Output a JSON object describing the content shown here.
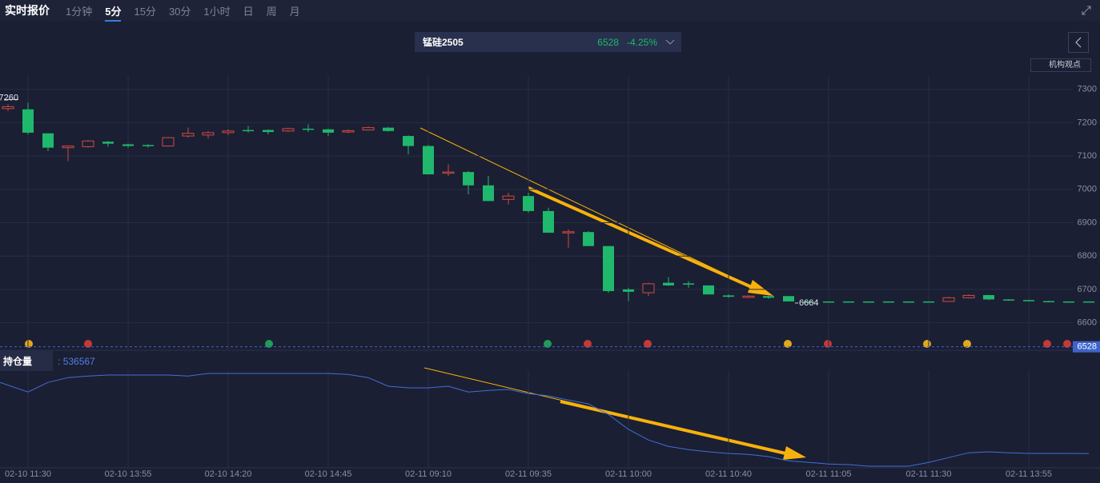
{
  "header": {
    "title": "实时报价",
    "tabs": [
      {
        "label": "1分钟"
      },
      {
        "label": "5分",
        "active": true
      },
      {
        "label": "15分"
      },
      {
        "label": "30分"
      },
      {
        "label": "1小时"
      },
      {
        "label": "日"
      },
      {
        "label": "周"
      },
      {
        "label": "月"
      }
    ]
  },
  "quote": {
    "symbol": "锰硅2505",
    "price": "6528",
    "change": "-4.25%"
  },
  "button": "机构观点",
  "chart_data": [
    {
      "type": "candlestick",
      "x": [
        null,
        "02-10 11:30",
        null,
        null,
        null,
        null,
        "02-10 13:55",
        null,
        null,
        null,
        null,
        "02-10 14:20",
        null,
        null,
        null,
        null,
        "02-10 14:45",
        null,
        null,
        null,
        null,
        "02-11 09:10",
        null,
        null,
        null,
        null,
        "02-11 09:35",
        null,
        null,
        null,
        null,
        "02-11 10:00",
        null,
        null,
        null,
        null,
        "02-11 10:40",
        null,
        null,
        null,
        null,
        "02-11 11:05",
        null,
        null,
        null,
        null,
        "02-11 11:30",
        null,
        null,
        null,
        null,
        "02-11 13:55",
        null,
        null,
        null
      ],
      "open": [
        7242,
        7240,
        7168,
        7125,
        7128,
        7143,
        7135,
        7133,
        7130,
        7160,
        7163,
        7170,
        7178,
        7178,
        7175,
        7182,
        7180,
        7172,
        7178,
        7185,
        7160,
        7130,
        7050,
        7052,
        7012,
        6970,
        6980,
        6935,
        6870,
        6872,
        6830,
        6700,
        6690,
        6720,
        6718,
        6712,
        6682,
        6676,
        6680,
        6680,
        6664,
        6664,
        6664,
        6664,
        6664,
        6664,
        6664,
        6664,
        6675,
        6683,
        6670,
        6668,
        6665,
        6664,
        6664
      ],
      "high": [
        7255,
        7260,
        7168,
        7132,
        7148,
        7145,
        7137,
        7135,
        7157,
        7185,
        7175,
        7180,
        7190,
        7180,
        7185,
        7195,
        7182,
        7180,
        7188,
        7187,
        7162,
        7133,
        7075,
        7055,
        7040,
        6990,
        6990,
        6945,
        6880,
        6875,
        6830,
        6705,
        6720,
        6737,
        6725,
        6712,
        6685,
        6682,
        6682,
        6680,
        6664,
        6664,
        6664,
        6664,
        6664,
        6664,
        6664,
        6678,
        6685,
        6684,
        6671,
        6669,
        6666,
        6664,
        6664
      ],
      "low": [
        7235,
        7165,
        7115,
        7085,
        7125,
        7128,
        7125,
        7125,
        7128,
        7155,
        7152,
        7163,
        7170,
        7165,
        7172,
        7172,
        7160,
        7168,
        7176,
        7173,
        7105,
        7045,
        7040,
        6985,
        6965,
        6955,
        6930,
        6870,
        6825,
        6830,
        6690,
        6665,
        6680,
        6710,
        6705,
        6685,
        6675,
        6674,
        6672,
        6664,
        6664,
        6664,
        6664,
        6664,
        6664,
        6664,
        6664,
        6664,
        6673,
        6668,
        6666,
        6665,
        6664,
        6664,
        6664
      ],
      "close": [
        7248,
        7170,
        7125,
        7130,
        7145,
        7137,
        7130,
        7130,
        7155,
        7168,
        7170,
        7175,
        7175,
        7172,
        7182,
        7180,
        7170,
        7176,
        7185,
        7175,
        7130,
        7045,
        7052,
        7012,
        6965,
        6980,
        6935,
        6870,
        6873,
        6830,
        6695,
        6693,
        6717,
        6712,
        6716,
        6685,
        6678,
        6680,
        6675,
        6664,
        6664,
        6664,
        6664,
        6664,
        6664,
        6664,
        6664,
        6675,
        6682,
        6670,
        6668,
        6665,
        6664,
        6664,
        6664
      ],
      "up_color": "#d24a43",
      "down_color": "#1fb86c",
      "last_price": 6528,
      "last_price_color": "#3e64c9",
      "ylim": [
        6520,
        7340
      ],
      "yticks": [
        6600,
        6700,
        6800,
        6900,
        7000,
        7100,
        7200,
        7300
      ],
      "grid": true
    },
    {
      "type": "line",
      "title": "持仓量",
      "color": "#3f6fd8",
      "values": [
        558800,
        555800,
        558800,
        560300,
        560800,
        561100,
        561100,
        561100,
        561100,
        560800,
        561600,
        561600,
        561600,
        561600,
        561600,
        561600,
        561600,
        561300,
        560300,
        557600,
        557100,
        557100,
        557600,
        555800,
        556300,
        556600,
        555300,
        554600,
        553300,
        552100,
        548800,
        544100,
        540800,
        538800,
        537800,
        537100,
        536600,
        536300,
        535600,
        534300,
        533800,
        533300,
        533100,
        532600,
        532600,
        532600,
        533800,
        535300,
        536800,
        537100,
        536800,
        536600,
        536600,
        536600,
        536567
      ]
    }
  ]
}
